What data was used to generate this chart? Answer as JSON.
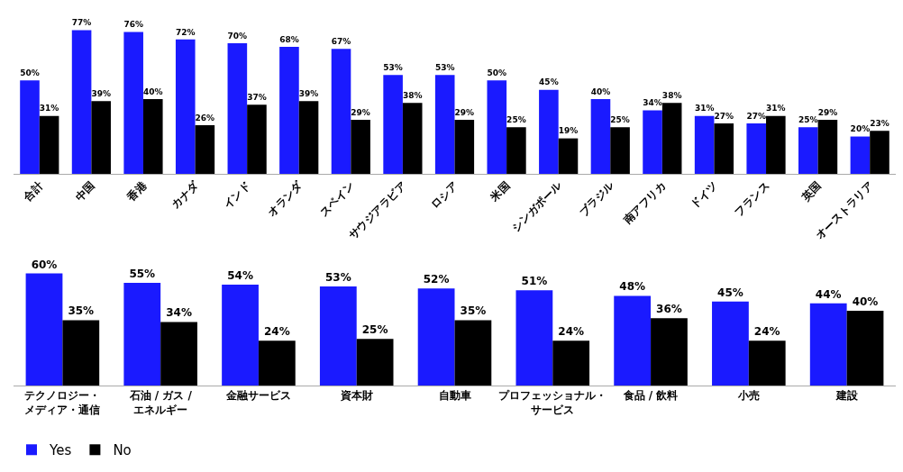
{
  "chart_data": [
    {
      "type": "bar",
      "categories": [
        "合計",
        "中国",
        "香港",
        "カナダ",
        "インド",
        "オランダ",
        "スペイン",
        "サウジアラビア",
        "ロシア",
        "米国",
        "シンガポール",
        "ブラジル",
        "南アフリカ",
        "ドイツ",
        "フランス",
        "英国",
        "オーストラリア"
      ],
      "series": [
        {
          "color": "#1a1aff",
          "values": [
            50,
            77,
            76,
            72,
            70,
            68,
            67,
            53,
            53,
            50,
            45,
            40,
            34,
            31,
            27,
            25,
            20
          ],
          "value_labels": [
            "50%",
            "77%",
            "76%",
            "72%",
            "70%",
            "68%",
            "67%",
            "53%",
            "53%",
            "50%",
            "45%",
            "40%",
            "34%",
            "31%",
            "27%",
            "25%",
            "20%"
          ]
        },
        {
          "color": "#000000",
          "values": [
            31,
            39,
            40,
            26,
            37,
            39,
            29,
            38,
            29,
            25,
            19,
            25,
            38,
            27,
            31,
            29,
            23
          ],
          "value_labels": [
            "31%",
            "39%",
            "40%",
            "26%",
            "37%",
            "39%",
            "29%",
            "38%",
            "29%",
            "25%",
            "19%",
            "25%",
            "38%",
            "27%",
            "31%",
            "29%",
            "23%"
          ]
        }
      ],
      "legend": false
    },
    {
      "type": "bar",
      "categories": [
        "テクノロジー・メディア・通信",
        "石油 / ガス / エネルギー",
        "金融サービス",
        "資本財",
        "自動車",
        "プロフェッショナル・サービス",
        "食品 / 飲料",
        "小売",
        "建設"
      ],
      "series": [
        {
          "name": "Yes",
          "color": "#1a1aff",
          "values": [
            60,
            55,
            54,
            53,
            52,
            51,
            48,
            45,
            44
          ],
          "value_labels": [
            "60%",
            "55%",
            "54%",
            "53%",
            "52%",
            "51%",
            "48%",
            "45%",
            "44%"
          ]
        },
        {
          "name": "No",
          "color": "#000000",
          "values": [
            35,
            34,
            24,
            25,
            35,
            24,
            36,
            24,
            40
          ],
          "value_labels": [
            "35%",
            "34%",
            "24%",
            "25%",
            "35%",
            "24%",
            "36%",
            "24%",
            "40%"
          ]
        }
      ],
      "legend": "bottom left"
    }
  ]
}
